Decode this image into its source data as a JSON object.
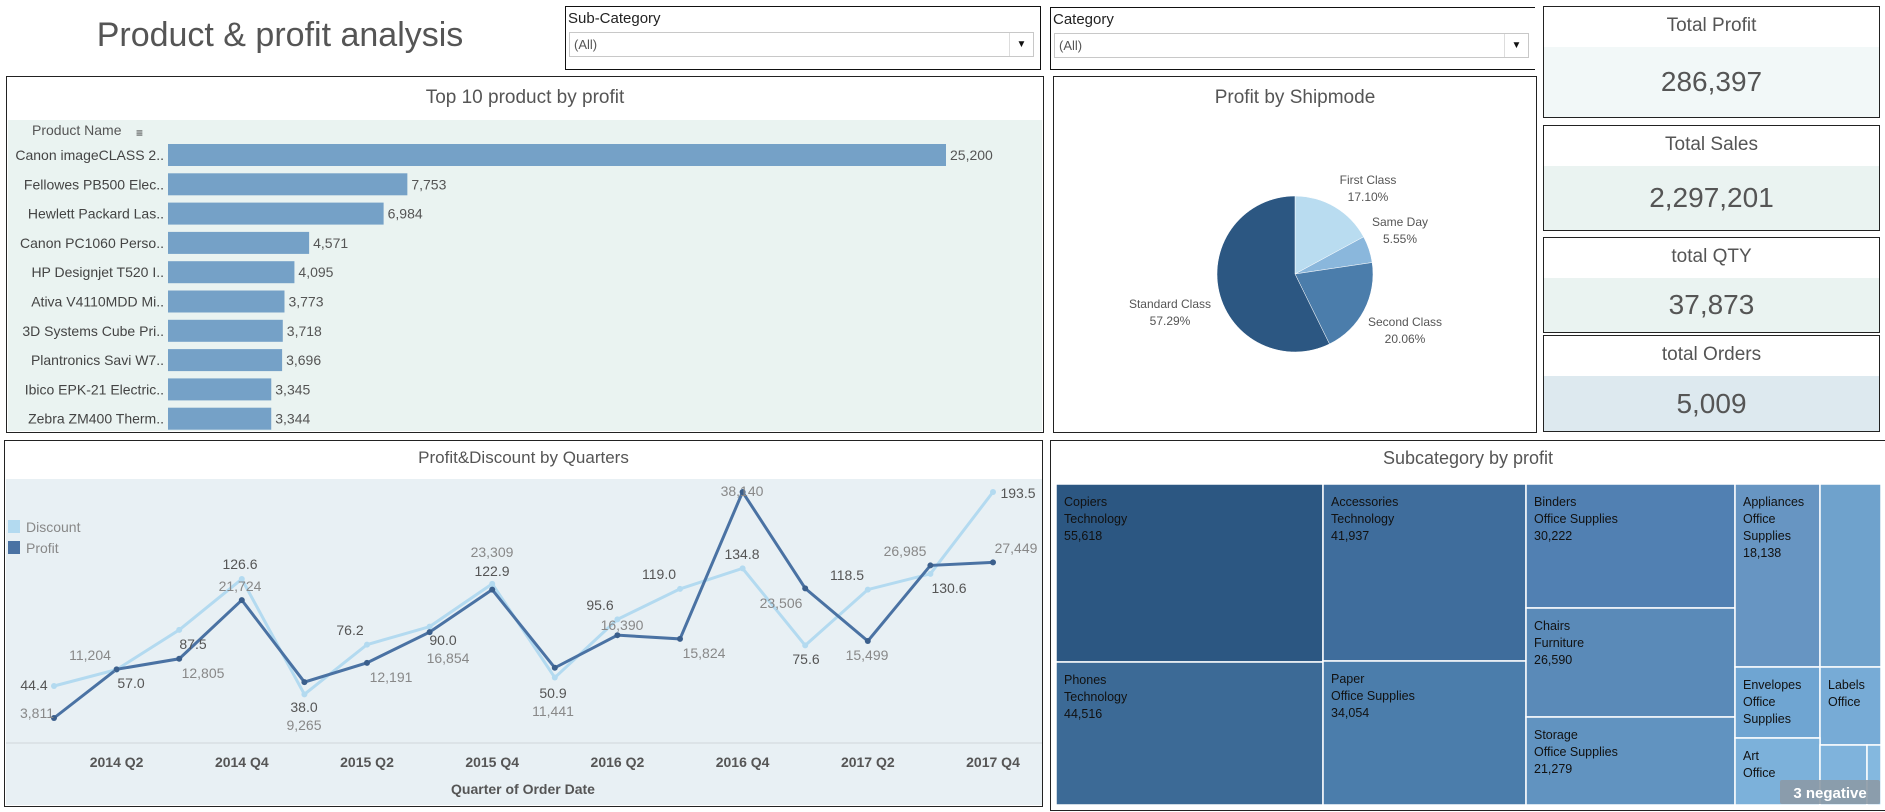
{
  "header": {
    "title": "Product & profit analysis"
  },
  "filters": [
    {
      "label": "Sub-Category",
      "value": "(All)"
    },
    {
      "label": "Category",
      "value": "(All)"
    }
  ],
  "kpis": [
    {
      "label": "Total Profit",
      "value": "286,397"
    },
    {
      "label": "Total Sales",
      "value": "2,297,201"
    },
    {
      "label": "total QTY",
      "value": "37,873"
    },
    {
      "label": "total Orders",
      "value": "5,009"
    }
  ],
  "colors": {
    "bar": "#75a1c7",
    "profit_line": "#4a72a3",
    "discount_line": "#b3daf0",
    "bar_bg": "#eaf3f1",
    "line_bg": "#e8f0f4"
  },
  "chart_data": [
    {
      "type": "bar",
      "title": "Top 10 product by profit",
      "ylabel": "Product Name",
      "categories": [
        "Canon imageCLASS 2..",
        "Fellowes PB500 Elec..",
        "Hewlett Packard Las..",
        "Canon PC1060 Perso..",
        "HP Designjet T520 I..",
        "Ativa V4110MDD Mi..",
        "3D Systems Cube Pri..",
        "Plantronics Savi W7..",
        "Ibico EPK-21 Electric..",
        "Zebra ZM400 Therm.."
      ],
      "values": [
        25200,
        7753,
        6984,
        4571,
        4095,
        3773,
        3718,
        3696,
        3345,
        3344
      ],
      "labels": [
        "25,200",
        "7,753",
        "6,984",
        "4,571",
        "4,095",
        "3,773",
        "3,718",
        "3,696",
        "3,345",
        "3,344"
      ]
    },
    {
      "type": "pie",
      "title": "Profit by Shipmode",
      "slices": [
        {
          "name": "First Class",
          "value": 17.1,
          "label": "17.10%",
          "color": "#b9dcf0"
        },
        {
          "name": "Same Day",
          "value": 5.55,
          "label": "5.55%",
          "color": "#8ab7dc"
        },
        {
          "name": "Second Class",
          "value": 20.06,
          "label": "20.06%",
          "color": "#4b7dab"
        },
        {
          "name": "Standard Class",
          "value": 57.29,
          "label": "57.29%",
          "color": "#2c5782"
        }
      ]
    },
    {
      "type": "line",
      "title": "Profit&Discount by Quarters",
      "xlabel": "Quarter of Order Date",
      "x": [
        "2014 Q1",
        "2014 Q2",
        "2014 Q3",
        "2014 Q4",
        "2015 Q1",
        "2015 Q2",
        "2015 Q3",
        "2015 Q4",
        "2016 Q1",
        "2016 Q2",
        "2016 Q3",
        "2016 Q4",
        "2017 Q1",
        "2017 Q2",
        "2017 Q3",
        "2017 Q4"
      ],
      "tick_labels": [
        "2014 Q2",
        "2014 Q4",
        "2015 Q2",
        "2015 Q4",
        "2016 Q2",
        "2016 Q4",
        "2017 Q2",
        "2017 Q4"
      ],
      "legend": [
        "Discount",
        "Profit"
      ],
      "legend_position": "left",
      "series": [
        {
          "name": "Discount",
          "values": [
            44.4,
            57.0,
            87.5,
            126.6,
            38.0,
            76.2,
            90.0,
            122.9,
            50.9,
            95.6,
            119.0,
            134.8,
            75.6,
            118.5,
            130.6,
            193.5
          ],
          "labels": [
            "44.4",
            "57.0",
            "87.5",
            "126.6",
            "38.0",
            "76.2",
            "90.0",
            "122.9",
            "50.9",
            "95.6",
            "119.0",
            "134.8",
            "75.6",
            "118.5",
            "130.6",
            "193.5"
          ]
        },
        {
          "name": "Profit",
          "values": [
            3811,
            11204,
            12805,
            21724,
            9265,
            12191,
            16854,
            23309,
            11441,
            16390,
            15824,
            38140,
            23506,
            15499,
            26985,
            27449
          ],
          "labels": [
            "3,811",
            "11,204",
            "12,805",
            "21,724",
            "9,265",
            "12,191",
            "16,854",
            "23,309",
            "11,441",
            "16,390",
            "15,824",
            "38,140",
            "23,506",
            "15,499",
            "26,985",
            "27,449"
          ]
        }
      ]
    },
    {
      "type": "treemap",
      "title": "Subcategory by profit",
      "cells": [
        {
          "name": "Copiers",
          "category": "Technology",
          "value": "55,618",
          "color": "#2c5782"
        },
        {
          "name": "Phones",
          "category": "Technology",
          "value": "44,516",
          "color": "#3c6a96"
        },
        {
          "name": "Accessories",
          "category": "Technology",
          "value": "41,937",
          "color": "#3f6d9c"
        },
        {
          "name": "Paper",
          "category": "Office Supplies",
          "value": "34,054",
          "color": "#4b7dab"
        },
        {
          "name": "Binders",
          "category": "Office Supplies",
          "value": "30,222",
          "color": "#5180b2"
        },
        {
          "name": "Chairs",
          "category": "Furniture",
          "value": "26,590",
          "color": "#5a8ab8"
        },
        {
          "name": "Storage",
          "category": "Office Supplies",
          "value": "21,279",
          "color": "#6193c0"
        },
        {
          "name": "Appliances",
          "category": "Office Supplies",
          "value": "18,138",
          "color": "#6795c2"
        },
        {
          "name": "",
          "category": "",
          "value": "",
          "color": "#6fa2cc"
        },
        {
          "name": "Envelopes",
          "category": "Office Supplies",
          "value": "",
          "color": "#6fa5d2"
        },
        {
          "name": "Labels",
          "category": "Office",
          "value": "",
          "color": "#77abd6"
        },
        {
          "name": "Art",
          "category": "Office",
          "value": "",
          "color": "#7cb1da"
        },
        {
          "name": "",
          "category": "",
          "value": "",
          "color": "#7fb3dc"
        },
        {
          "name": "",
          "category": "",
          "value": "",
          "color": "#84b8df"
        }
      ],
      "badge": "3 negative"
    }
  ]
}
